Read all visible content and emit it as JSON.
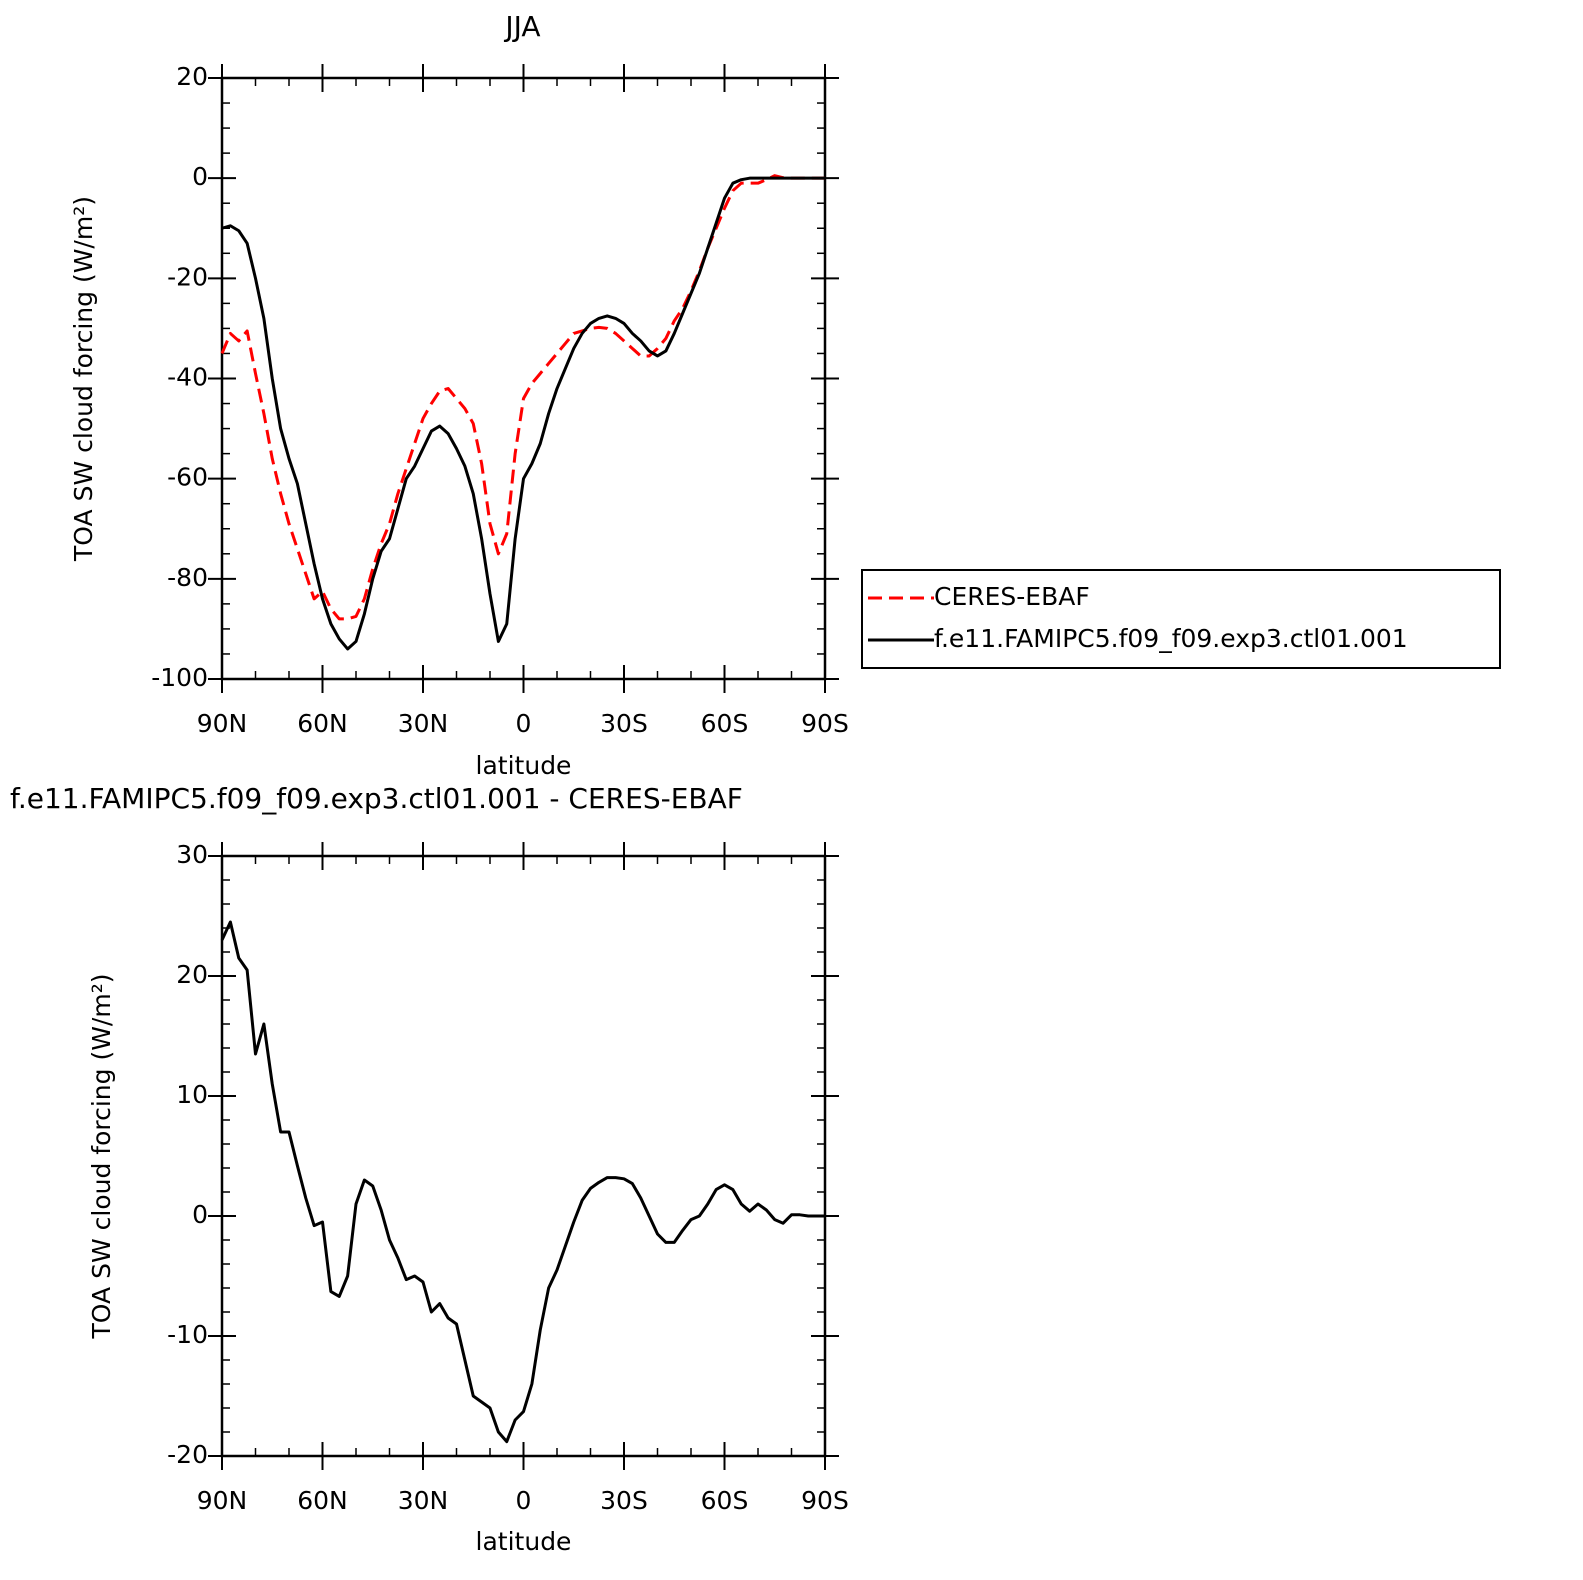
{
  "chart_data": [
    {
      "type": "line",
      "title": "JJA",
      "x_label": "latitude",
      "y_label": "TOA SW cloud forcing (W/m²)",
      "xlim": [
        90,
        -90
      ],
      "xticks": [
        {
          "value": 90,
          "label": "90N"
        },
        {
          "value": 60,
          "label": "60N"
        },
        {
          "value": 30,
          "label": "30N"
        },
        0,
        {
          "value": -30,
          "label": "30S"
        },
        {
          "value": -60,
          "label": "60S"
        },
        {
          "value": -90,
          "label": "90S"
        }
      ],
      "xminorticks": [
        80,
        70,
        50,
        40,
        20,
        10,
        -10,
        -20,
        -40,
        -50,
        -70,
        -80
      ],
      "ylim": [
        -100,
        20
      ],
      "yticks": [
        -100,
        -80,
        -60,
        -40,
        -20,
        0,
        20
      ],
      "yminorticks": [
        15,
        10,
        5,
        -5,
        -10,
        -15,
        -25,
        -30,
        -35,
        -45,
        -50,
        -55,
        -65,
        -70,
        -75,
        -85,
        -90,
        -95
      ],
      "legend": "right",
      "x": [
        90,
        87.5,
        85,
        82.5,
        80,
        77.5,
        75,
        72.5,
        70,
        67.5,
        65,
        62.5,
        60,
        57.5,
        55,
        52.5,
        50,
        47.5,
        45,
        42.5,
        40,
        37.5,
        35,
        32.5,
        30,
        27.5,
        25,
        22.5,
        20,
        17.5,
        15,
        12.5,
        10,
        7.5,
        5,
        2.5,
        0,
        -2.5,
        -5,
        -7.5,
        -10,
        -12.5,
        -15,
        -17.5,
        -20,
        -22.5,
        -25,
        -27.5,
        -30,
        -32.5,
        -35,
        -37.5,
        -40,
        -42.5,
        -45,
        -47.5,
        -50,
        -52.5,
        -55,
        -57.5,
        -60,
        -62.5,
        -65,
        -67.5,
        -70,
        -72.5,
        -75,
        -77.5,
        -80,
        -82.5,
        -85,
        -87.5,
        -90
      ],
      "series": [
        {
          "name": "CERES-EBAF",
          "color": "#ff0000",
          "linestyle": "dashed",
          "values": [
            -35,
            -31,
            -32.5,
            -30.5,
            -39,
            -47,
            -56,
            -63,
            -69,
            -74,
            -79,
            -84,
            -82.5,
            -86,
            -88,
            -88,
            -87.5,
            -84,
            -78,
            -73,
            -69,
            -63,
            -58,
            -53,
            -48,
            -45,
            -42.5,
            -42,
            -44,
            -46,
            -49,
            -57,
            -69,
            -75,
            -71,
            -55,
            -44,
            -41,
            -39,
            -37,
            -35,
            -33,
            -31,
            -30.5,
            -30,
            -29.8,
            -30,
            -31,
            -32.5,
            -34,
            -35.5,
            -35.5,
            -34,
            -32,
            -28.5,
            -26,
            -22.5,
            -18.5,
            -14,
            -10,
            -6,
            -2.5,
            -1,
            -1,
            -1,
            -0.3,
            0.5,
            0.1,
            0,
            0,
            0,
            0,
            0
          ]
        },
        {
          "name": "f.e11.FAMIPC5.f09_f09.exp3.ctl01.001",
          "color": "#000000",
          "linestyle": "solid",
          "values": [
            -10,
            -9.5,
            -10.5,
            -13,
            -20,
            -28,
            -40,
            -50,
            -56,
            -61,
            -69,
            -77,
            -84,
            -89,
            -92,
            -94,
            -92.5,
            -87,
            -80,
            -74.5,
            -72,
            -66,
            -60,
            -57.5,
            -54,
            -50.5,
            -49.5,
            -51,
            -54,
            -57.5,
            -63,
            -72,
            -83,
            -92.5,
            -89,
            -72,
            -60,
            -57,
            -53,
            -47,
            -42,
            -38,
            -34,
            -31,
            -29,
            -28,
            -27.5,
            -28,
            -29,
            -31,
            -32.5,
            -34.5,
            -35.5,
            -34.5,
            -31,
            -27,
            -23,
            -19,
            -14,
            -9,
            -4,
            -1,
            -0.3,
            0,
            0,
            0,
            0,
            0,
            0,
            0,
            0,
            0,
            0
          ]
        }
      ]
    },
    {
      "type": "line",
      "title": "f.e11.FAMIPC5.f09_f09.exp3.ctl01.001 - CERES-EBAF",
      "x_label": "latitude",
      "y_label": "TOA SW cloud forcing (W/m²)",
      "xlim": [
        90,
        -90
      ],
      "xticks": [
        {
          "value": 90,
          "label": "90N"
        },
        {
          "value": 60,
          "label": "60N"
        },
        {
          "value": 30,
          "label": "30N"
        },
        0,
        {
          "value": -30,
          "label": "30S"
        },
        {
          "value": -60,
          "label": "60S"
        },
        {
          "value": -90,
          "label": "90S"
        }
      ],
      "xminorticks": [
        80,
        70,
        50,
        40,
        20,
        10,
        -10,
        -20,
        -40,
        -50,
        -70,
        -80
      ],
      "ylim": [
        -20,
        30
      ],
      "yticks": [
        -20,
        -10,
        0,
        10,
        20,
        30
      ],
      "yminorticks": [
        28,
        26,
        24,
        22,
        18,
        16,
        14,
        12,
        8,
        6,
        4,
        2,
        -2,
        -4,
        -6,
        -8,
        -12,
        -14,
        -16,
        -18
      ],
      "color": "#000000",
      "x": [
        90,
        87.5,
        85,
        82.5,
        80,
        77.5,
        75,
        72.5,
        70,
        67.5,
        65,
        62.5,
        60,
        57.5,
        55,
        52.5,
        50,
        47.5,
        45,
        42.5,
        40,
        37.5,
        35,
        32.5,
        30,
        27.5,
        25,
        22.5,
        20,
        17.5,
        15,
        12.5,
        10,
        7.5,
        5,
        2.5,
        0,
        -2.5,
        -5,
        -7.5,
        -10,
        -12.5,
        -15,
        -17.5,
        -20,
        -22.5,
        -25,
        -27.5,
        -30,
        -32.5,
        -35,
        -37.5,
        -40,
        -42.5,
        -45,
        -47.5,
        -50,
        -52.5,
        -55,
        -57.5,
        -60,
        -62.5,
        -65,
        -67.5,
        -70,
        -72.5,
        -75,
        -77.5,
        -80,
        -82.5,
        -85,
        -87.5,
        -90
      ],
      "values": [
        23,
        24.5,
        21.5,
        20.5,
        13.5,
        16,
        11,
        7,
        7,
        4.2,
        1.5,
        -0.8,
        -0.5,
        -6.3,
        -6.7,
        -5,
        1,
        3,
        2.5,
        0.5,
        -2,
        -3.5,
        -5.3,
        -5,
        -5.5,
        -8,
        -7.3,
        -8.5,
        -9,
        -12,
        -15,
        -15.5,
        -16,
        -18,
        -18.8,
        -17,
        -16.3,
        -14,
        -9.5,
        -6,
        -4.5,
        -2.5,
        -0.5,
        1.3,
        2.3,
        2.8,
        3.2,
        3.2,
        3.1,
        2.7,
        1.5,
        0,
        -1.5,
        -2.2,
        -2.2,
        -1.2,
        -0.3,
        0,
        1,
        2.2,
        2.6,
        2.2,
        1,
        0.4,
        1,
        0.5,
        -0.3,
        -0.6,
        0.1,
        0.1,
        0,
        0,
        0
      ]
    }
  ]
}
